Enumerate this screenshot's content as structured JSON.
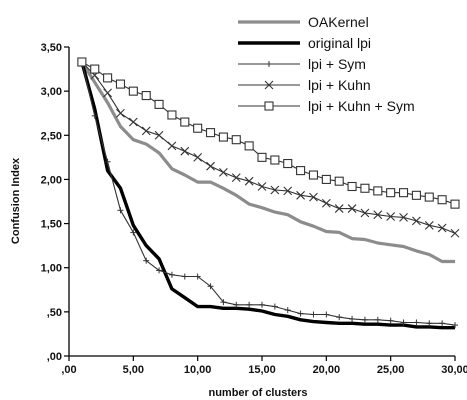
{
  "chart_data": {
    "type": "line",
    "title": "",
    "xlabel": "number of clusters",
    "ylabel": "Confusion Index",
    "xlim": [
      0,
      30
    ],
    "ylim": [
      0,
      3.5
    ],
    "x_ticks": [
      0,
      5,
      10,
      15,
      20,
      25,
      30
    ],
    "x_tick_labels": [
      ",00",
      "5,00",
      "10,00",
      "15,00",
      "20,00",
      "25,00",
      "30,00"
    ],
    "y_ticks": [
      0,
      0.5,
      1,
      1.5,
      2,
      2.5,
      3,
      3.5
    ],
    "y_tick_labels": [
      ",00",
      ",50",
      "1,00",
      "1,50",
      "2,00",
      "2,50",
      "3,00",
      "3,50"
    ],
    "grid": false,
    "legend_position": "top-right",
    "x": [
      1,
      2,
      3,
      4,
      5,
      6,
      7,
      8,
      9,
      10,
      11,
      12,
      13,
      14,
      15,
      16,
      17,
      18,
      19,
      20,
      21,
      22,
      23,
      24,
      25,
      26,
      27,
      28,
      29,
      30
    ],
    "series": [
      {
        "name": "OAKernel",
        "color": "#8c8c8c",
        "marker": "none",
        "values": [
          3.33,
          3.1,
          2.87,
          2.6,
          2.45,
          2.4,
          2.3,
          2.12,
          2.05,
          1.97,
          1.97,
          1.9,
          1.82,
          1.72,
          1.68,
          1.63,
          1.6,
          1.52,
          1.47,
          1.41,
          1.4,
          1.33,
          1.32,
          1.28,
          1.26,
          1.24,
          1.19,
          1.15,
          1.07,
          1.07
        ]
      },
      {
        "name": "original lpi",
        "color": "#000000",
        "marker": "none",
        "values": [
          3.33,
          2.8,
          2.1,
          1.9,
          1.48,
          1.25,
          1.1,
          0.76,
          0.66,
          0.56,
          0.56,
          0.54,
          0.54,
          0.53,
          0.51,
          0.47,
          0.45,
          0.41,
          0.39,
          0.38,
          0.37,
          0.37,
          0.36,
          0.36,
          0.35,
          0.35,
          0.33,
          0.33,
          0.32,
          0.32
        ]
      },
      {
        "name": "lpi + Sym",
        "color": "#333333",
        "marker": "plus",
        "values": [
          3.33,
          2.72,
          2.2,
          1.65,
          1.4,
          1.08,
          0.97,
          0.92,
          0.9,
          0.9,
          0.79,
          0.61,
          0.58,
          0.58,
          0.58,
          0.56,
          0.52,
          0.48,
          0.47,
          0.47,
          0.44,
          0.42,
          0.41,
          0.41,
          0.4,
          0.38,
          0.38,
          0.37,
          0.37,
          0.35
        ]
      },
      {
        "name": "lpi + Kuhn",
        "color": "#333333",
        "marker": "x",
        "values": [
          3.33,
          3.18,
          2.98,
          2.75,
          2.65,
          2.55,
          2.5,
          2.38,
          2.32,
          2.25,
          2.15,
          2.08,
          2.02,
          1.98,
          1.92,
          1.88,
          1.87,
          1.82,
          1.8,
          1.73,
          1.67,
          1.67,
          1.62,
          1.6,
          1.58,
          1.57,
          1.53,
          1.48,
          1.45,
          1.39
        ]
      },
      {
        "name": "lpi + Kuhn + Sym",
        "color": "#333333",
        "marker": "square",
        "values": [
          3.33,
          3.25,
          3.15,
          3.08,
          3.0,
          2.95,
          2.85,
          2.73,
          2.65,
          2.58,
          2.53,
          2.48,
          2.45,
          2.38,
          2.25,
          2.22,
          2.18,
          2.1,
          2.05,
          2.0,
          1.98,
          1.92,
          1.9,
          1.87,
          1.85,
          1.85,
          1.82,
          1.8,
          1.77,
          1.72
        ]
      }
    ]
  }
}
